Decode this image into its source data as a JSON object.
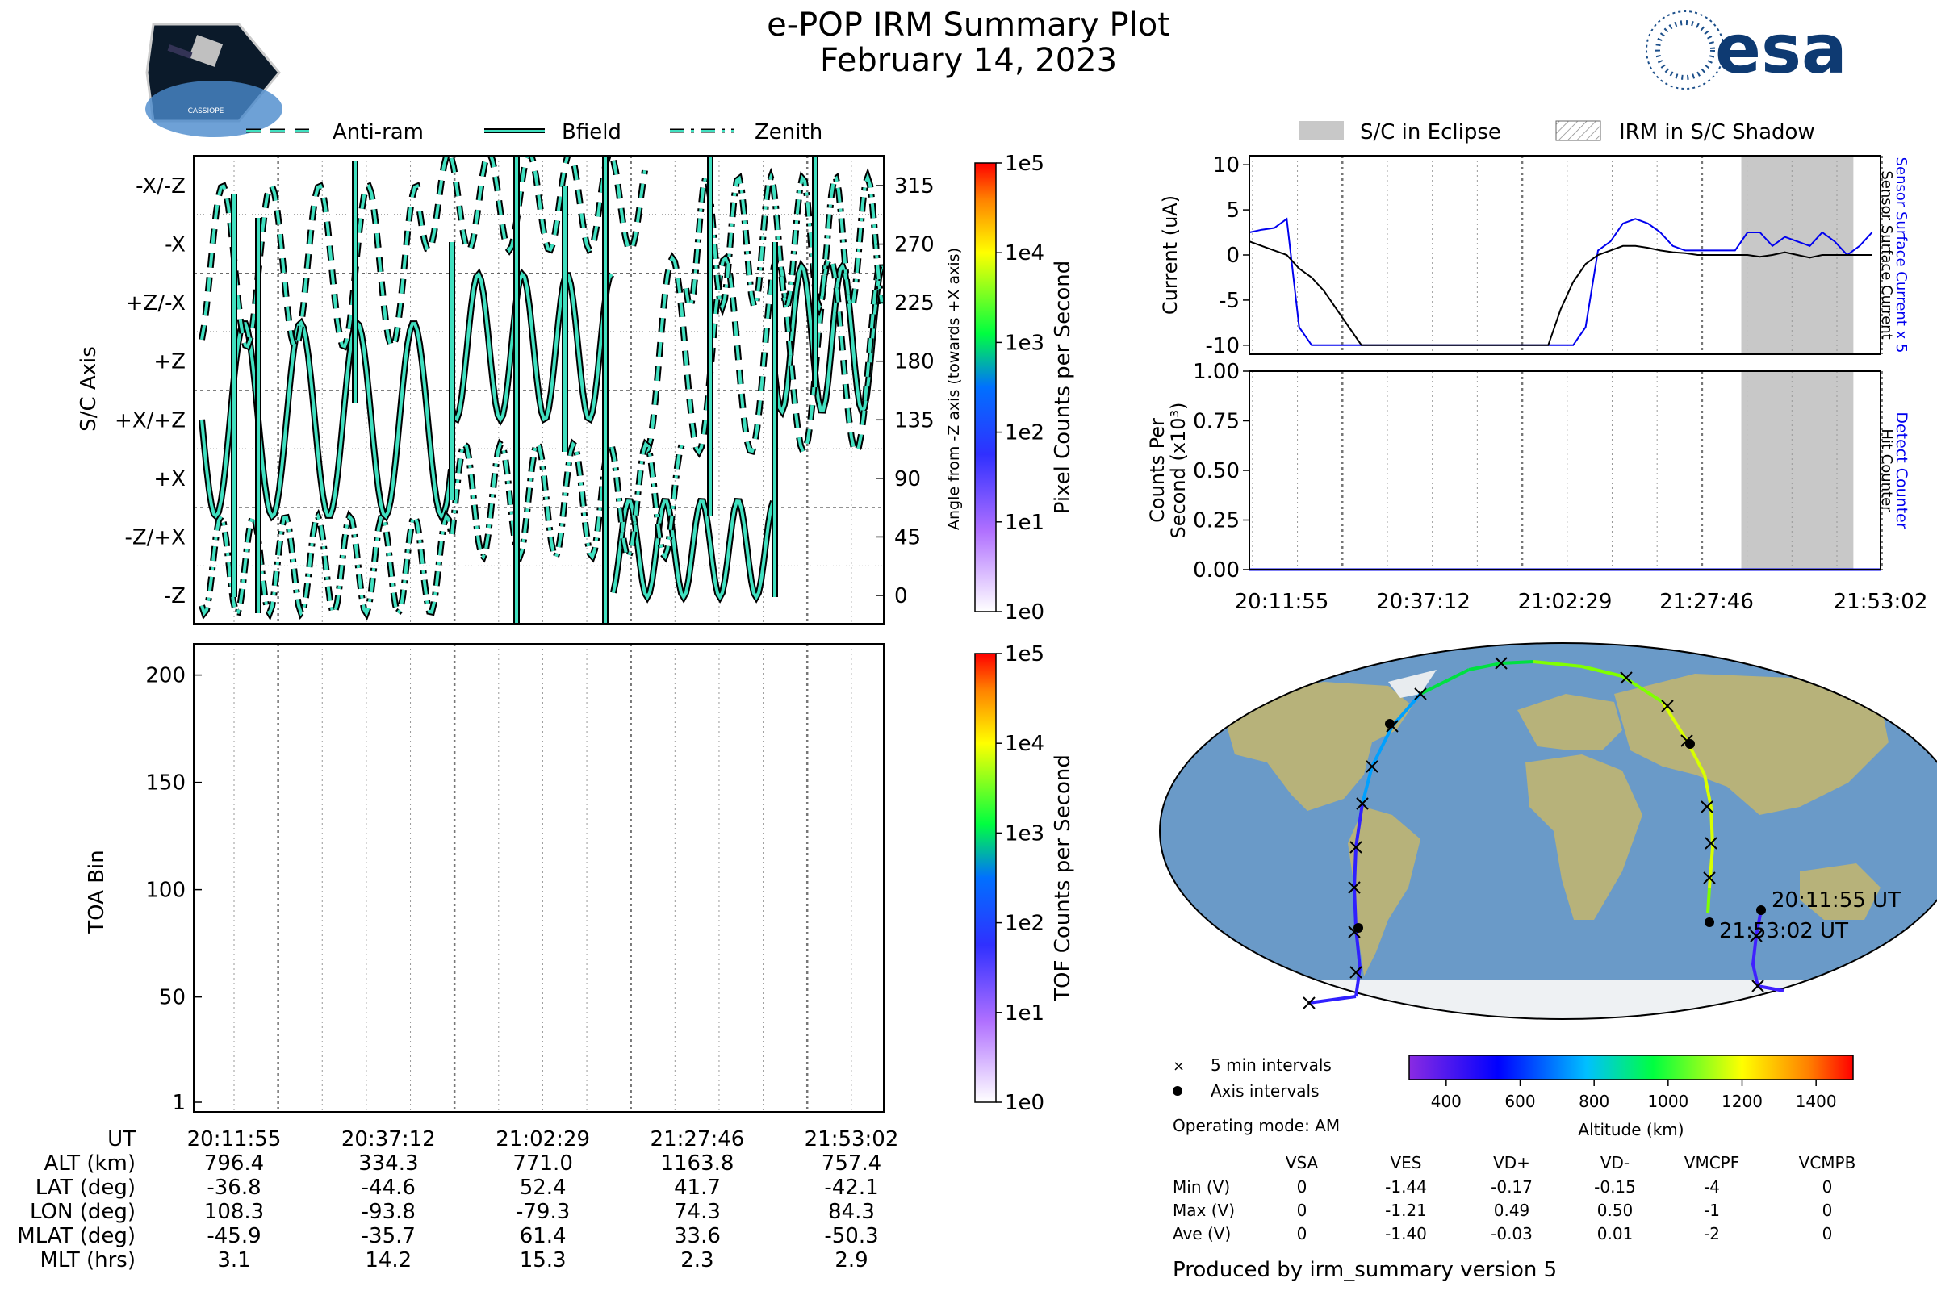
{
  "title": "e-POP IRM Summary Plot",
  "subtitle": "February 14, 2023",
  "logos": {
    "left": "cassiope-mission-patch",
    "left_text": "CASSIOPE",
    "right": "esa-logo",
    "right_text": "esa"
  },
  "colors": {
    "trace_fill": "#40e0c0",
    "trace_edge": "#000000",
    "current_blue": "#0000ee",
    "eclipse_gray": "#c8c8c8",
    "map_ocean": "#6a9ac8",
    "map_land": "#b7b27a"
  },
  "attitude_panel": {
    "legend": [
      "Anti-ram",
      "Bfield",
      "Zenith"
    ],
    "ylabel_left": "S/C Axis",
    "ylabel_right": "Angle from -Z axis (towards +X axis)",
    "left_ticks": [
      "-X/-Z",
      "-X",
      "+Z/-X",
      "+Z",
      "+X/+Z",
      "+X",
      "-Z/+X",
      "-Z"
    ],
    "right_ticks": [
      "315",
      "270",
      "225",
      "180",
      "135",
      "90",
      "45",
      "0"
    ],
    "colorbar_label": "Pixel Counts per Second",
    "colorbar_ticks": [
      "1e5",
      "1e4",
      "1e3",
      "1e2",
      "1e1",
      "1e0"
    ]
  },
  "toa_panel": {
    "ylabel": "TOA Bin",
    "ticks": [
      "200",
      "150",
      "100",
      "50",
      "1"
    ],
    "colorbar_label": "TOF Counts per Second",
    "colorbar_ticks": [
      "1e5",
      "1e4",
      "1e3",
      "1e2",
      "1e1",
      "1e0"
    ]
  },
  "time_table": {
    "rows": [
      {
        "label": "UT",
        "values": [
          "20:11:55",
          "20:37:12",
          "21:02:29",
          "21:27:46",
          "21:53:02"
        ]
      },
      {
        "label": "ALT (km)",
        "values": [
          "796.4",
          "334.3",
          "771.0",
          "1163.8",
          "757.4"
        ]
      },
      {
        "label": "LAT (deg)",
        "values": [
          "-36.8",
          "-44.6",
          "52.4",
          "41.7",
          "-42.1"
        ]
      },
      {
        "label": "LON (deg)",
        "values": [
          "108.3",
          "-93.8",
          "-79.3",
          "74.3",
          "84.3"
        ]
      },
      {
        "label": "MLAT (deg)",
        "values": [
          "-45.9",
          "-35.7",
          "61.4",
          "33.6",
          "-50.3"
        ]
      },
      {
        "label": "MLT (hrs)",
        "values": [
          "3.1",
          "14.2",
          "15.3",
          "2.3",
          "2.9"
        ]
      }
    ]
  },
  "current_panel": {
    "legend": [
      "S/C in Eclipse",
      "IRM in S/C Shadow"
    ],
    "ylabel": "Current (uA)",
    "right_label_blue": "Sensor Surface Current x 5",
    "right_label_black": "Sensor Surface Current",
    "ticks": [
      "10",
      "5",
      "0",
      "-5",
      "-10"
    ]
  },
  "counts_panel": {
    "ylabel_1": "Counts Per",
    "ylabel_2": "Second (x10³)",
    "right_label_blue": "Detect Counter",
    "right_label_black": "Hit Counter",
    "ticks": [
      "1.00",
      "0.75",
      "0.50",
      "0.25",
      "0.00"
    ],
    "time_ticks": [
      "20:11:55",
      "20:37:12",
      "21:02:29",
      "21:27:46",
      "21:53:02"
    ]
  },
  "map": {
    "start_label": "20:11:55 UT",
    "end_label": "21:53:02 UT",
    "legend_5min": "5 min intervals",
    "legend_axis": "Axis intervals",
    "operating_mode": "Operating mode: AM",
    "altitude_label": "Altitude (km)",
    "altitude_ticks": [
      "400",
      "600",
      "800",
      "1000",
      "1200",
      "1400"
    ]
  },
  "voltage_table": {
    "columns": [
      "VSA",
      "VES",
      "VD+",
      "VD-",
      "VMCPF",
      "VCMPB"
    ],
    "rows": [
      {
        "label": "Min (V)",
        "values": [
          "0",
          "-1.44",
          "-0.17",
          "-0.15",
          "-4",
          "0"
        ]
      },
      {
        "label": "Max (V)",
        "values": [
          "0",
          "-1.21",
          "0.49",
          "0.50",
          "-1",
          "0"
        ]
      },
      {
        "label": "Ave (V)",
        "values": [
          "0",
          "-1.40",
          "-0.03",
          "0.01",
          "-2",
          "0"
        ]
      }
    ]
  },
  "footer": "Produced by irm_summary version 5",
  "chart_data": [
    {
      "type": "line",
      "name": "attitude",
      "x_range": [
        "20:11:55",
        "21:53:02"
      ],
      "ylim": [
        0,
        360
      ],
      "series": [
        {
          "name": "Anti-ram",
          "style": "dashed"
        },
        {
          "name": "Bfield",
          "style": "solid"
        },
        {
          "name": "Zenith",
          "style": "dash-dot"
        }
      ]
    },
    {
      "type": "heatmap",
      "name": "toa",
      "ylim": [
        1,
        210
      ],
      "values": []
    },
    {
      "type": "line",
      "name": "current",
      "ylim": [
        -11,
        11
      ],
      "x_minutes": [
        0,
        2,
        4,
        6,
        8,
        10,
        12,
        14,
        16,
        18,
        20,
        22,
        24,
        26,
        28,
        30,
        32,
        34,
        36,
        38,
        40,
        42,
        44,
        46,
        48,
        50,
        52,
        54,
        56,
        58,
        60,
        62,
        64,
        66,
        68,
        70,
        72,
        74,
        76,
        78,
        80,
        82,
        84,
        86,
        88,
        90,
        92,
        94,
        96,
        98,
        100
      ],
      "series": [
        {
          "name": "Sensor Surface Current x 5",
          "values": [
            2.5,
            2.8,
            3.0,
            4.0,
            -8,
            -10,
            -10,
            -10,
            -10,
            -10,
            -10,
            -10,
            -10,
            -10,
            -10,
            -10,
            -10,
            -10,
            -10,
            -10,
            -10,
            -10,
            -10,
            -10,
            -10,
            -10,
            -10,
            -8,
            0.5,
            1.5,
            3.5,
            4.0,
            3.5,
            2.5,
            1.0,
            0.5,
            0.5,
            0.5,
            0.5,
            0.5,
            2.5,
            2.5,
            1.0,
            2.0,
            1.5,
            1.0,
            2.5,
            1.5,
            0.0,
            1.0,
            2.5
          ]
        },
        {
          "name": "Sensor Surface Current",
          "values": [
            1.5,
            1.0,
            0.5,
            0.0,
            -1.5,
            -2.5,
            -4,
            -6,
            -8,
            -10,
            -10,
            -10,
            -10,
            -10,
            -10,
            -10,
            -10,
            -10,
            -10,
            -10,
            -10,
            -10,
            -10,
            -10,
            -10,
            -6,
            -3,
            -1,
            0.0,
            0.5,
            1.0,
            1.0,
            0.8,
            0.5,
            0.3,
            0.2,
            0.0,
            0.0,
            0.0,
            0.0,
            0.0,
            -0.2,
            0.0,
            0.3,
            0.0,
            -0.3,
            0.0,
            0.0,
            0.0,
            0.0,
            0.0
          ]
        }
      ],
      "eclipse_start_min": 79,
      "eclipse_end_min": 97
    },
    {
      "type": "line",
      "name": "counts",
      "ylim": [
        0,
        1
      ],
      "series": [
        {
          "name": "Detect Counter",
          "values": [
            0,
            0
          ]
        },
        {
          "name": "Hit Counter",
          "values": [
            0,
            0
          ]
        }
      ]
    }
  ]
}
